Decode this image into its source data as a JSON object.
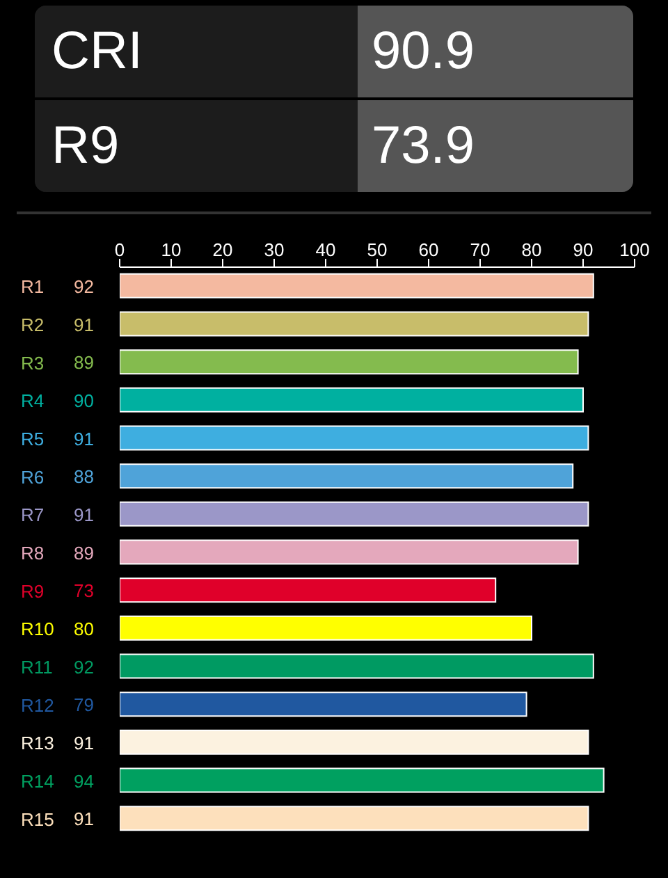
{
  "chart_data": [
    {
      "type": "other",
      "annotations": [
        "CRI",
        "90.9",
        "R9",
        "73.9"
      ]
    },
    {
      "type": "bar",
      "orientation": "horizontal",
      "categories": [
        "R1",
        "R2",
        "R3",
        "R4",
        "R5",
        "R6",
        "R7",
        "R8",
        "R9",
        "R10",
        "R11",
        "R12",
        "R13",
        "R14",
        "R15"
      ],
      "values": [
        92,
        91,
        89,
        90,
        91,
        88,
        91,
        89,
        73,
        80,
        92,
        79,
        91,
        94,
        91
      ],
      "colors": [
        "#f4b9a0",
        "#c8bd6a",
        "#84bb4e",
        "#00b0a0",
        "#3eaee0",
        "#4fa3d9",
        "#9b97c8",
        "#e4a8bc",
        "#e0002a",
        "#ffff00",
        "#009a62",
        "#2058a0",
        "#fcf2e0",
        "#00a060",
        "#fde0bc"
      ],
      "xlim": [
        0,
        100
      ],
      "xticks": [
        0,
        10,
        20,
        30,
        40,
        50,
        60,
        70,
        80,
        90,
        100
      ],
      "data_labels": true
    }
  ]
}
